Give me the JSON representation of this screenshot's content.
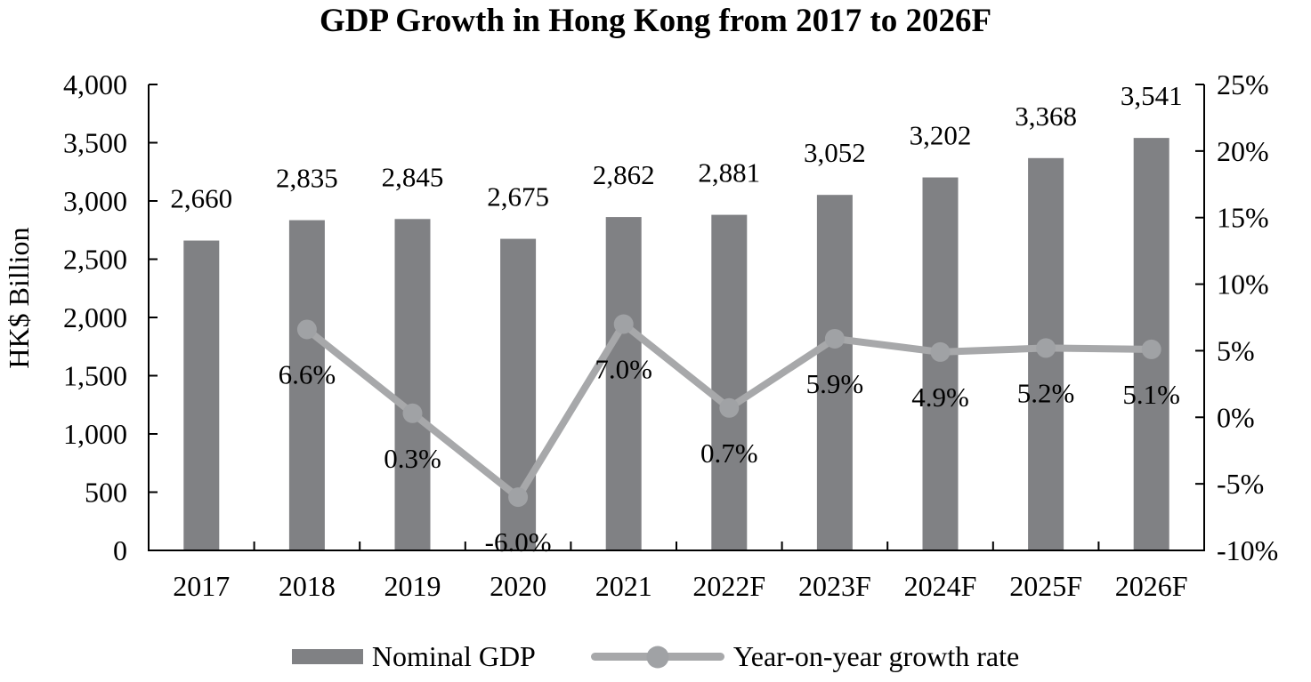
{
  "title": "GDP Growth in Hong Kong from 2017 to 2026F",
  "y_axis_title": "HK$ Billion",
  "legend": {
    "bar_label": "Nominal GDP",
    "line_label": "Year-on-year growth rate"
  },
  "colors": {
    "bar": "#808184",
    "line": "#A7A8AA",
    "marker": "#A0A2A5",
    "axis": "#000000"
  },
  "chart_data": {
    "type": "bar",
    "subtype": "combo-bar-line",
    "title": "GDP Growth in Hong Kong from 2017 to 2026F",
    "categories": [
      "2017",
      "2018",
      "2019",
      "2020",
      "2021",
      "2022F",
      "2023F",
      "2024F",
      "2025F",
      "2026F"
    ],
    "series": [
      {
        "name": "Nominal GDP",
        "type": "bar",
        "axis": "left",
        "unit": "HK$ Billion",
        "values": [
          2660,
          2835,
          2845,
          2675,
          2862,
          2881,
          3052,
          3202,
          3368,
          3541
        ],
        "color": "#808184"
      },
      {
        "name": "Year-on-year growth rate",
        "type": "line",
        "axis": "right",
        "unit": "%",
        "start_index": 1,
        "values": [
          6.6,
          0.3,
          -6.0,
          7.0,
          0.7,
          5.9,
          4.9,
          5.2,
          5.1
        ],
        "color": "#A7A8AA"
      }
    ],
    "left_axis": {
      "label": "HK$ Billion",
      "min": 0,
      "max": 4000,
      "step": 500
    },
    "right_axis": {
      "min": -10,
      "max": 25,
      "step": 5,
      "format": "percent"
    },
    "grid": false,
    "legend_position": "bottom"
  }
}
